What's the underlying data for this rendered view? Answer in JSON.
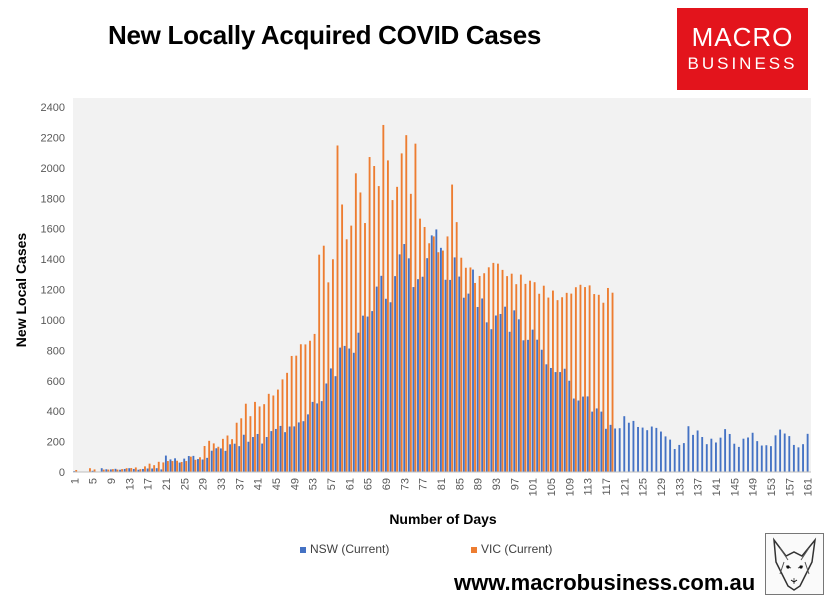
{
  "header": {
    "title": "New Locally Acquired COVID Cases",
    "logo_line1": "MACRO",
    "logo_line2": "BUSINESS",
    "logo_color": "#e3141c"
  },
  "footer": {
    "url": "www.macrobusiness.com.au"
  },
  "chart_data": {
    "type": "bar",
    "title": "New Locally Acquired COVID Cases",
    "xlabel": "Number of Days",
    "ylabel": "New Local Cases",
    "ylim": [
      0,
      2400
    ],
    "yticks": [
      0,
      200,
      400,
      600,
      800,
      1000,
      1200,
      1400,
      1600,
      1800,
      2000,
      2200,
      2400
    ],
    "xtick_step": 4,
    "grid": false,
    "legend_position": "bottom",
    "plot_background": "#f2f2f2",
    "annotations": [
      {
        "series": "VIC (Current)",
        "day": 119,
        "text": "1179"
      },
      {
        "series": "NSW (Current)",
        "day": 162,
        "text": "251"
      }
    ],
    "series": [
      {
        "name": "NSW (Current)",
        "color": "#4472c4",
        "start_day": 1,
        "values": [
          6,
          3,
          0,
          2,
          8,
          0,
          25,
          18,
          17,
          21,
          15,
          20,
          25,
          20,
          15,
          20,
          23,
          23,
          25,
          17,
          108,
          83,
          90,
          62,
          88,
          105,
          106,
          85,
          82,
          93,
          140,
          156,
          155,
          139,
          182,
          186,
          170,
          245,
          199,
          230,
          250,
          187,
          230,
          269,
          283,
          303,
          262,
          299,
          300,
          326,
          334,
          379,
          461,
          451,
          466,
          582,
          681,
          630,
          818,
          829,
          812,
          784,
          916,
          1028,
          1022,
          1058,
          1219,
          1290,
          1139,
          1116,
          1288,
          1431,
          1499,
          1405,
          1216,
          1268,
          1284,
          1406,
          1556,
          1595,
          1474,
          1264,
          1263,
          1411,
          1285,
          1146,
          1173,
          1331,
          1085,
          1141,
          984,
          939,
          1029,
          1039,
          1087,
          922,
          1063,
          1004,
          866,
          869,
          936,
          870,
          804,
          708,
          684,
          657,
          657,
          679,
          600,
          483,
          470,
          496,
          497,
          397,
          418,
          397,
          284,
          310,
          286,
          288,
          367,
          324,
          336,
          296,
          292,
          275,
          299,
          290,
          266,
          234,
          213,
          151,
          178,
          190,
          301,
          244,
          273,
          230,
          183,
          219,
          194,
          226,
          282,
          250,
          186,
          165,
          219,
          227,
          258,
          203,
          174,
          176,
          170,
          241,
          279,
          253,
          236,
          178,
          162,
          183,
          251
        ]
      },
      {
        "name": "VIC (Current)",
        "color": "#ed7d31",
        "start_day": 1,
        "values": [
          13,
          0,
          0,
          25,
          17,
          0,
          16,
          16,
          19,
          16,
          19,
          25,
          26,
          30,
          19,
          37,
          55,
          45,
          67,
          63,
          72,
          72,
          74,
          66,
          72,
          101,
          80,
          97,
          171,
          205,
          188,
          166,
          218,
          240,
          216,
          324,
          353,
          449,
          367,
          461,
          431,
          446,
          514,
          503,
          542,
          609,
          652,
          763,
          765,
          840,
          839,
          863,
          908,
          1429,
          1488,
          1247,
          1399,
          2147,
          1759,
          1530,
          1620,
          1964,
          1838,
          1637,
          2071,
          2012,
          1880,
          2282,
          2049,
          1788,
          1875,
          2095,
          2215,
          1829,
          2159,
          1666,
          1611,
          1504,
          1549,
          1445,
          1456,
          1549,
          1890,
          1643,
          1409,
          1343,
          1345,
          1243,
          1289,
          1307,
          1346,
          1375,
          1370,
          1329,
          1288,
          1304,
          1235,
          1298,
          1237,
          1258,
          1248,
          1172,
          1225,
          1147,
          1193,
          1130,
          1149,
          1178,
          1173,
          1215,
          1231,
          1216,
          1227,
          1170,
          1165,
          1113,
          1210,
          1179
        ]
      }
    ]
  }
}
